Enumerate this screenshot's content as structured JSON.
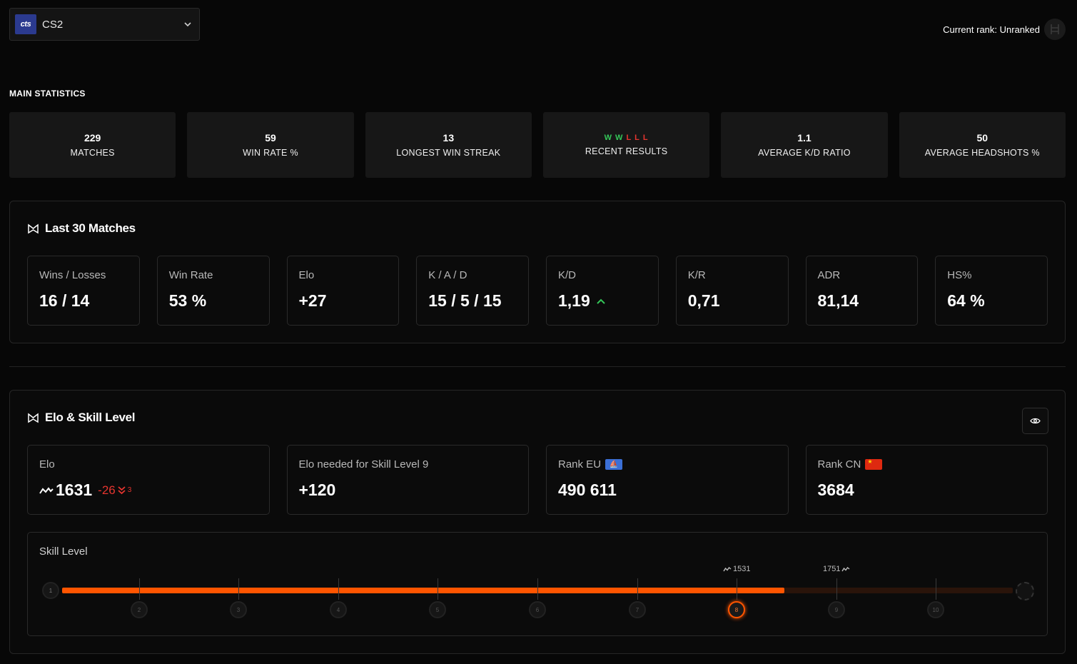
{
  "game_selector": {
    "logo": "cts",
    "game": "CS2",
    "chevron_icon": "chevron-down-icon"
  },
  "header": {
    "current_rank": "Current rank: Unranked",
    "rank_icon": "rank-badge-icon"
  },
  "main_statistics": {
    "title": "MAIN STATISTICS",
    "cards": [
      {
        "value": "229",
        "label": "MATCHES"
      },
      {
        "value": "59",
        "label": "WIN RATE %"
      },
      {
        "value": "13",
        "label": "LONGEST WIN STREAK"
      },
      {
        "value": "",
        "label": "RECENT RESULTS"
      },
      {
        "value": "1.1",
        "label": "AVERAGE K/D RATIO"
      },
      {
        "value": "50",
        "label": "AVERAGE HEADSHOTS %"
      }
    ],
    "recent_results": [
      "W",
      "W",
      "L",
      "L",
      "L"
    ],
    "colors": {
      "win": "#34c759",
      "loss": "#e5352f"
    }
  },
  "last30": {
    "title": "Last 30 Matches",
    "cards": [
      {
        "label": "Wins / Losses",
        "value": "16 / 14"
      },
      {
        "label": "Win Rate",
        "value": "53 %"
      },
      {
        "label": "Elo",
        "value": "+27"
      },
      {
        "label": "K / A / D",
        "value": "15 / 5 / 15"
      },
      {
        "label": "K/D",
        "value": "1,19"
      },
      {
        "label": "K/R",
        "value": "0,71"
      },
      {
        "label": "ADR",
        "value": "81,14"
      },
      {
        "label": "HS%",
        "value": "64 %"
      }
    ]
  },
  "elo_skill": {
    "title": "Elo & Skill Level",
    "elo": {
      "label": "Elo",
      "value": "1631",
      "delta": "-26",
      "delta_sub": "3"
    },
    "needed": {
      "label": "Elo needed for Skill Level 9",
      "value": "+120"
    },
    "rank_eu": {
      "label": "Rank EU",
      "value": "490 611"
    },
    "rank_cn": {
      "label": "Rank CN",
      "value": "3684"
    },
    "skill": {
      "title": "Skill Level",
      "levels": [
        "1",
        "2",
        "3",
        "4",
        "5",
        "6",
        "7",
        "8",
        "9",
        "10"
      ],
      "current_level": 8,
      "progress": 0.76,
      "marker_lower": "1531",
      "marker_upper": "1751",
      "accent": "#ff5500"
    }
  }
}
